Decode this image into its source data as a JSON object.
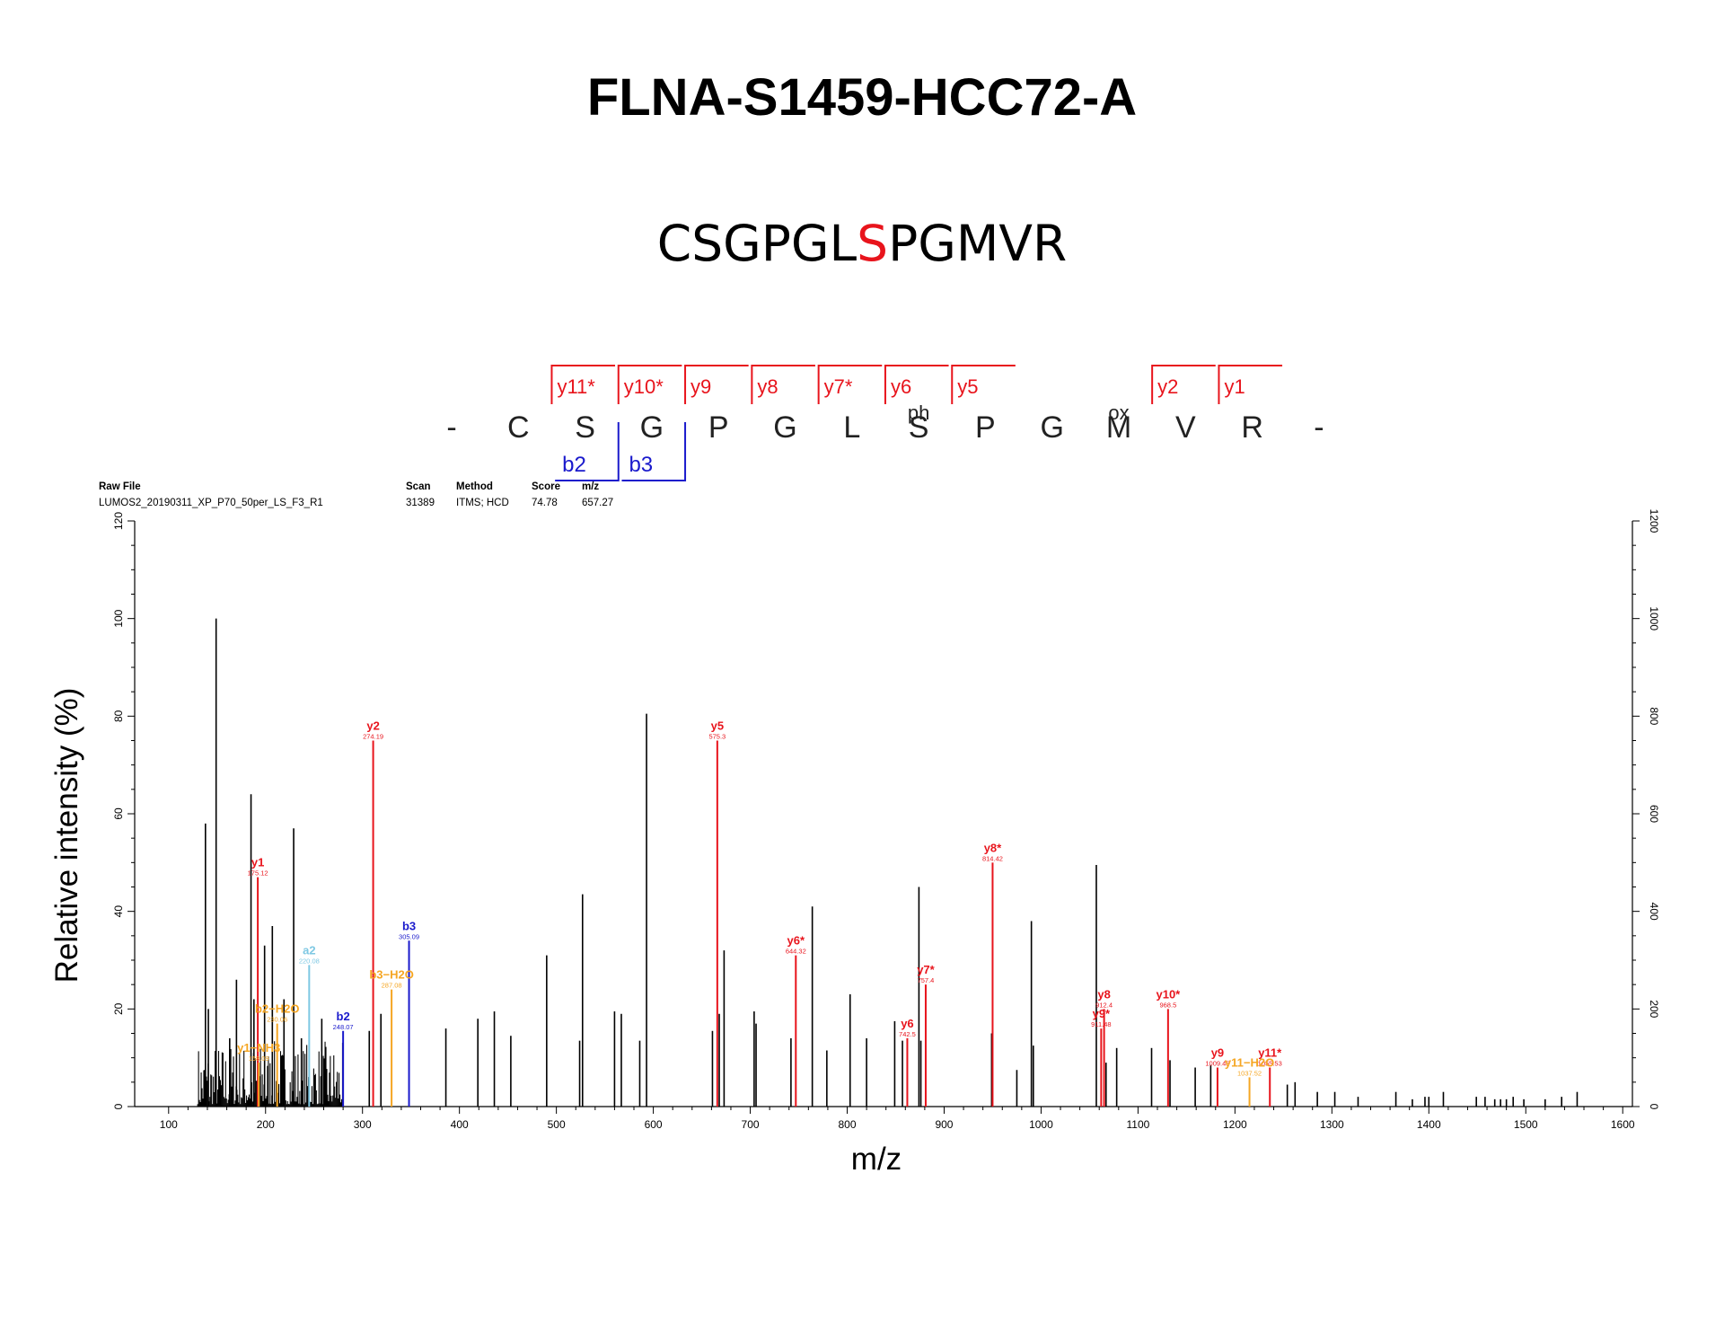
{
  "chart_data": {
    "type": "bar",
    "title": "FLNA-S1459-HCC72-A",
    "subtitle": {
      "parts": [
        {
          "text": "CSGPGL",
          "color": "#000000"
        },
        {
          "text": "S",
          "color": "#e8141c"
        },
        {
          "text": "PGMVR",
          "color": "#000000"
        }
      ]
    },
    "xlabel": "m/z",
    "ylabel": "Relative intensity (%)",
    "xlim": [
      65,
      1610
    ],
    "ylim": [
      0,
      120
    ],
    "y2lim": [
      0,
      1200
    ],
    "x_ticks": [
      100,
      200,
      300,
      400,
      500,
      600,
      700,
      800,
      900,
      1000,
      1100,
      1200,
      1300,
      1400,
      1500,
      1600
    ],
    "y_ticks": [
      0,
      20,
      40,
      60,
      80,
      100,
      120
    ],
    "y2_ticks": [
      0,
      200,
      400,
      600,
      800,
      1000,
      1200
    ],
    "colors": {
      "y": "#e8141c",
      "b": "#1a1acc",
      "a": "#7ec8e3",
      "neutral_loss": "#f5a623",
      "unassigned": "#000000"
    },
    "info_table": {
      "headers": [
        "Raw File",
        "Scan",
        "Method",
        "Score",
        "m/z"
      ],
      "values": [
        "LUMOS2_20190311_XP_P70_50per_LS_F3_R1",
        "31389",
        "ITMS; HCD",
        "74.78",
        "657.27"
      ]
    },
    "sequence_map": {
      "residues": [
        "-",
        "C",
        "S",
        "G",
        "P",
        "G",
        "L",
        "S",
        "P",
        "G",
        "M",
        "V",
        "R",
        "-"
      ],
      "modifications": [
        {
          "index": 7,
          "label": "ph"
        },
        {
          "index": 10,
          "label": "ox"
        }
      ],
      "y_ions": [
        {
          "label": "y11*",
          "after": 1
        },
        {
          "label": "y10*",
          "after": 2
        },
        {
          "label": "y9",
          "after": 3
        },
        {
          "label": "y8",
          "after": 4
        },
        {
          "label": "y7*",
          "after": 5
        },
        {
          "label": "y6",
          "after": 6
        },
        {
          "label": "y5",
          "after": 7
        },
        {
          "label": "y2",
          "after": 10
        },
        {
          "label": "y1",
          "after": 11
        }
      ],
      "b_ions": [
        {
          "label": "b2",
          "after": 2
        },
        {
          "label": "b3",
          "after": 3
        }
      ]
    },
    "annotated_peaks": [
      {
        "mz": 192,
        "intensity": 47,
        "label": "y1",
        "value": "175.12",
        "type": "y"
      },
      {
        "mz": 311,
        "intensity": 75,
        "label": "y2",
        "value": "274.19",
        "type": "y"
      },
      {
        "mz": 666,
        "intensity": 75,
        "label": "y5",
        "value": "575.3",
        "type": "y"
      },
      {
        "mz": 862,
        "intensity": 14,
        "label": "y6",
        "value": "742.5",
        "type": "y"
      },
      {
        "mz": 747,
        "intensity": 31,
        "label": "y6*",
        "value": "644.32",
        "type": "y"
      },
      {
        "mz": 881,
        "intensity": 25,
        "label": "y7*",
        "value": "757.4",
        "type": "y"
      },
      {
        "mz": 950,
        "intensity": 50,
        "label": "y8*",
        "value": "814.42",
        "type": "y"
      },
      {
        "mz": 1065,
        "intensity": 20,
        "label": "y8",
        "value": "912.4",
        "type": "y"
      },
      {
        "mz": 1062,
        "intensity": 16,
        "label": "y9*",
        "value": "911.48",
        "type": "y"
      },
      {
        "mz": 1182,
        "intensity": 8,
        "label": "y9",
        "value": "1009.45",
        "type": "y"
      },
      {
        "mz": 1131,
        "intensity": 20,
        "label": "y10*",
        "value": "968.5",
        "type": "y"
      },
      {
        "mz": 1236,
        "intensity": 8,
        "label": "y11*",
        "value": "1055.53",
        "type": "y"
      },
      {
        "mz": 280,
        "intensity": 15.5,
        "label": "b2",
        "value": "248.07",
        "type": "b"
      },
      {
        "mz": 348,
        "intensity": 34,
        "label": "b3",
        "value": "305.09",
        "type": "b"
      },
      {
        "mz": 245,
        "intensity": 29,
        "label": "a2",
        "value": "220.08",
        "type": "a"
      },
      {
        "mz": 330,
        "intensity": 24,
        "label": "b3-H2O",
        "value": "287.08",
        "type": "neutral_loss"
      },
      {
        "mz": 212,
        "intensity": 17,
        "label": "b2-H2O",
        "value": "230.06",
        "type": "neutral_loss"
      },
      {
        "mz": 193,
        "intensity": 9,
        "label": "y1-NH3",
        "value": "158.09",
        "type": "neutral_loss"
      },
      {
        "mz": 1215,
        "intensity": 6,
        "label": "y11-H2O",
        "value": "1037.52",
        "type": "neutral_loss"
      }
    ],
    "peaks": [
      {
        "mz": 138,
        "intensity": 58
      },
      {
        "mz": 141,
        "intensity": 20
      },
      {
        "mz": 149,
        "intensity": 100
      },
      {
        "mz": 163,
        "intensity": 14
      },
      {
        "mz": 170,
        "intensity": 26
      },
      {
        "mz": 185,
        "intensity": 64
      },
      {
        "mz": 188,
        "intensity": 22
      },
      {
        "mz": 199,
        "intensity": 33
      },
      {
        "mz": 207,
        "intensity": 37
      },
      {
        "mz": 219,
        "intensity": 22
      },
      {
        "mz": 229,
        "intensity": 57
      },
      {
        "mz": 237,
        "intensity": 14
      },
      {
        "mz": 258,
        "intensity": 18
      },
      {
        "mz": 307,
        "intensity": 15.5
      },
      {
        "mz": 319,
        "intensity": 19
      },
      {
        "mz": 386,
        "intensity": 16
      },
      {
        "mz": 419,
        "intensity": 18
      },
      {
        "mz": 436,
        "intensity": 19.5
      },
      {
        "mz": 453,
        "intensity": 14.5
      },
      {
        "mz": 490,
        "intensity": 31
      },
      {
        "mz": 524,
        "intensity": 13.5
      },
      {
        "mz": 527,
        "intensity": 43.5
      },
      {
        "mz": 560,
        "intensity": 19.5
      },
      {
        "mz": 567,
        "intensity": 19
      },
      {
        "mz": 586,
        "intensity": 13.5
      },
      {
        "mz": 593,
        "intensity": 80.5
      },
      {
        "mz": 661,
        "intensity": 15.5
      },
      {
        "mz": 668,
        "intensity": 19
      },
      {
        "mz": 673,
        "intensity": 32
      },
      {
        "mz": 704,
        "intensity": 19.5
      },
      {
        "mz": 706,
        "intensity": 17
      },
      {
        "mz": 742,
        "intensity": 14
      },
      {
        "mz": 764,
        "intensity": 41
      },
      {
        "mz": 779,
        "intensity": 11.5
      },
      {
        "mz": 803,
        "intensity": 23
      },
      {
        "mz": 820,
        "intensity": 14
      },
      {
        "mz": 849,
        "intensity": 17.5
      },
      {
        "mz": 857,
        "intensity": 13.5
      },
      {
        "mz": 874,
        "intensity": 45
      },
      {
        "mz": 876,
        "intensity": 13.5
      },
      {
        "mz": 949,
        "intensity": 15
      },
      {
        "mz": 975,
        "intensity": 7.5
      },
      {
        "mz": 990,
        "intensity": 38
      },
      {
        "mz": 992,
        "intensity": 12.5
      },
      {
        "mz": 1057,
        "intensity": 49.5
      },
      {
        "mz": 1067,
        "intensity": 9
      },
      {
        "mz": 1078,
        "intensity": 12
      },
      {
        "mz": 1114,
        "intensity": 12
      },
      {
        "mz": 1133,
        "intensity": 9.5
      },
      {
        "mz": 1159,
        "intensity": 8
      },
      {
        "mz": 1175,
        "intensity": 8.5
      },
      {
        "mz": 1254,
        "intensity": 4.5
      },
      {
        "mz": 1262,
        "intensity": 5
      },
      {
        "mz": 1285,
        "intensity": 3
      },
      {
        "mz": 1303,
        "intensity": 3
      },
      {
        "mz": 1327,
        "intensity": 2
      },
      {
        "mz": 1366,
        "intensity": 3
      },
      {
        "mz": 1383,
        "intensity": 1.5
      },
      {
        "mz": 1396,
        "intensity": 2
      },
      {
        "mz": 1400,
        "intensity": 2
      },
      {
        "mz": 1415,
        "intensity": 3
      },
      {
        "mz": 1449,
        "intensity": 2
      },
      {
        "mz": 1458,
        "intensity": 2
      },
      {
        "mz": 1468,
        "intensity": 1.5
      },
      {
        "mz": 1474,
        "intensity": 1.5
      },
      {
        "mz": 1480,
        "intensity": 1.5
      },
      {
        "mz": 1487,
        "intensity": 2
      },
      {
        "mz": 1498,
        "intensity": 1.5
      },
      {
        "mz": 1520,
        "intensity": 1.5
      },
      {
        "mz": 1537,
        "intensity": 2
      },
      {
        "mz": 1553,
        "intensity": 3
      }
    ],
    "noise_region": {
      "mz_range": [
        130,
        281
      ],
      "max_intensity": 13
    },
    "legend": "none",
    "grid": false
  }
}
